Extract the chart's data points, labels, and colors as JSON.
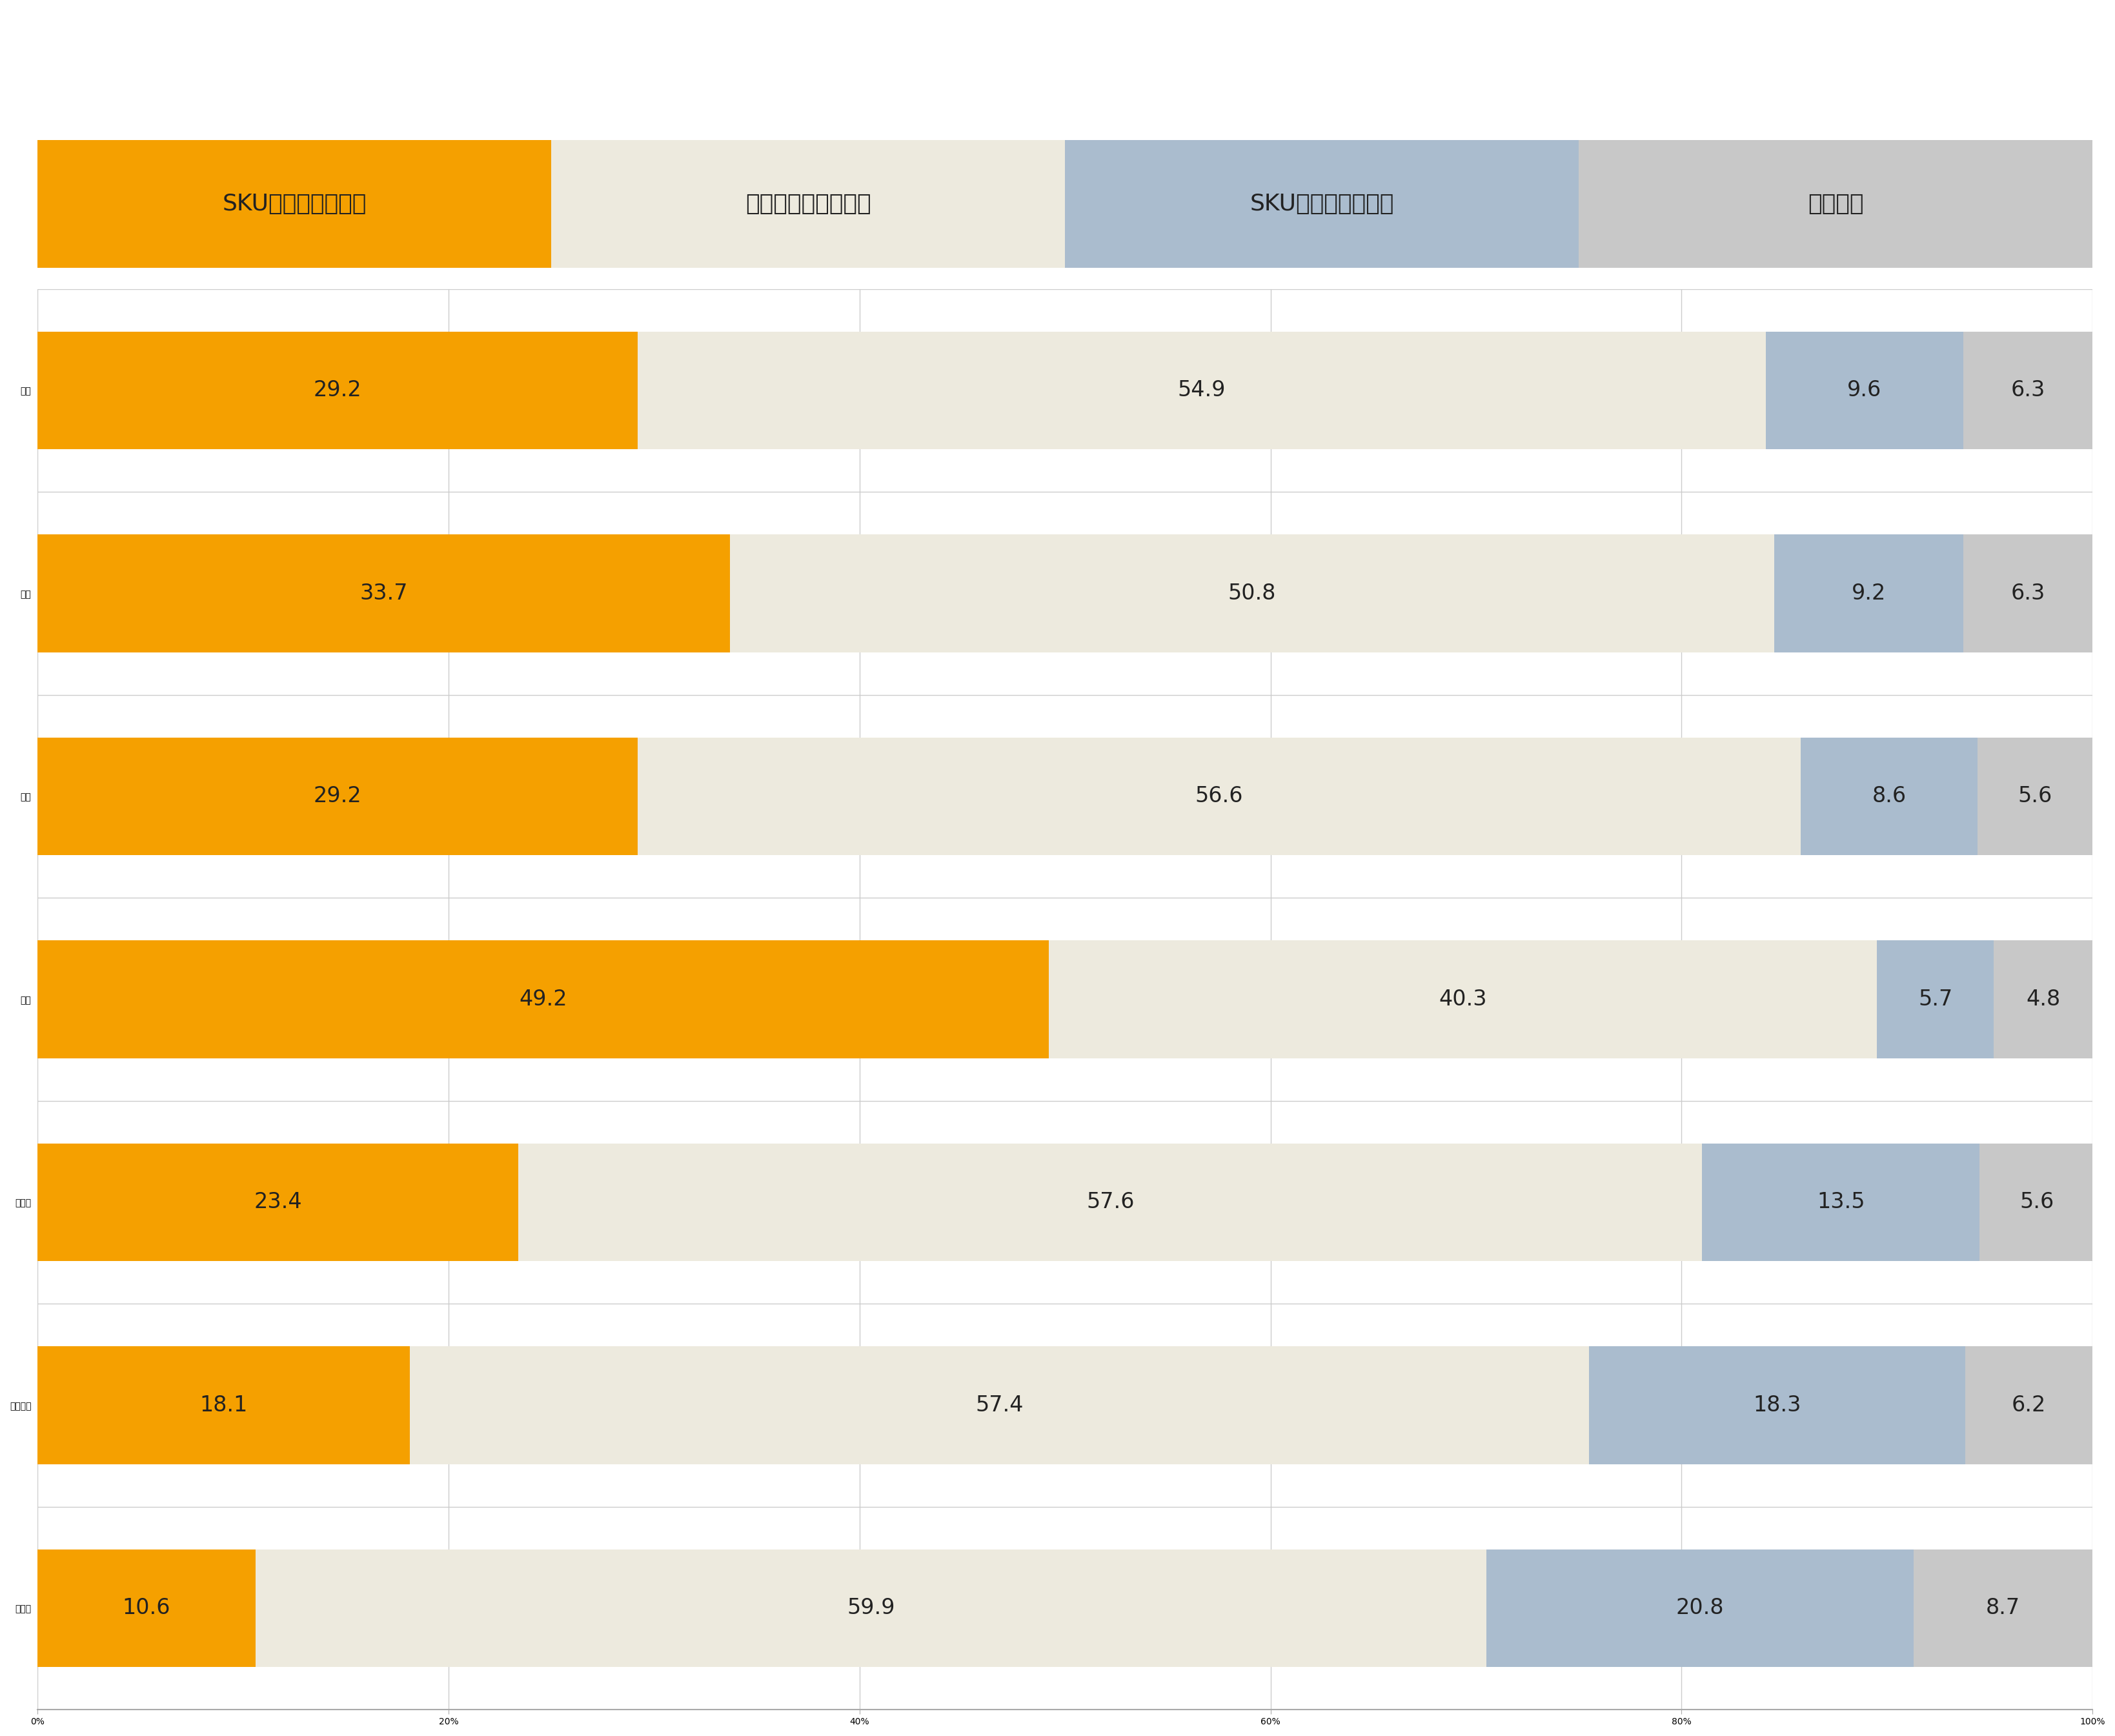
{
  "categories": [
    "青果",
    "水産",
    "畜産",
    "惣菜",
    "日配品",
    "一般食品",
    "非食品"
  ],
  "segments": [
    "SKU数を増やしたい",
    "どちらともいえない",
    "SKU数を減らしたい",
    "意向なし"
  ],
  "values": [
    [
      29.2,
      54.9,
      9.6,
      6.3
    ],
    [
      33.7,
      50.8,
      9.2,
      6.3
    ],
    [
      29.2,
      56.6,
      8.6,
      5.6
    ],
    [
      49.2,
      40.3,
      5.7,
      4.8
    ],
    [
      23.4,
      57.6,
      13.5,
      5.6
    ],
    [
      18.1,
      57.4,
      18.3,
      6.2
    ],
    [
      10.6,
      59.9,
      20.8,
      8.7
    ]
  ],
  "colors": [
    "#F5A000",
    "#EDEADE",
    "#AABCCE",
    "#C8C8C8"
  ],
  "legend_colors": [
    "#F5A000",
    "#EDEADE",
    "#AABCCE",
    "#C8C8C8"
  ],
  "bar_height": 0.58,
  "background_color": "#FFFFFF",
  "plot_bg_color": "#FFFFFF",
  "xlim": [
    0,
    100
  ],
  "xticks": [
    0,
    20,
    40,
    60,
    80,
    100
  ],
  "xticklabels": [
    "0%",
    "20%",
    "40%",
    "60%",
    "80%",
    "100%"
  ],
  "tick_fontsize": 26,
  "ytick_fontsize": 28,
  "value_fontsize": 24,
  "legend_fontsize": 26,
  "spine_color": "#AAAAAA",
  "grid_color": "#CCCCCC",
  "legend_rect_color_0": "#F5A000",
  "legend_rect_color_1": "#EDEADE",
  "legend_rect_color_2": "#AABCCE",
  "legend_rect_color_3": "#C8C8C8"
}
